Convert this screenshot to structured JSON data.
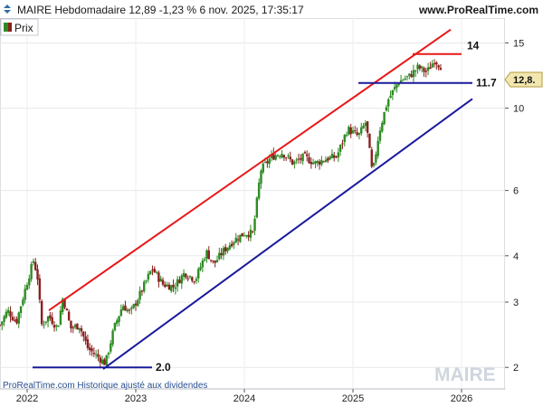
{
  "header": {
    "title": "MAIRE Hebdomadaire 12,89 -1,23 % 6 nov. 2025, 17:35:17",
    "brand": "www.ProRealTime.com"
  },
  "legend": {
    "label": "Prix",
    "icon": "candlestick-icon"
  },
  "watermark": "MAIRE",
  "footer": "ProRealTime.com  Historique ajusté aux dividendes",
  "last_price_badge": "12,8.",
  "colors": {
    "up": "#2e8b24",
    "down": "#8b1f1f",
    "channel_top": "#e81818",
    "channel_bottom": "#1a1a9c",
    "level_red": "#e81818",
    "level_blue": "#1a1a9c",
    "badge_bg": "#f2e7b0"
  },
  "chart_data": {
    "type": "candlestick",
    "scale": "log",
    "x_labels": [
      "2022",
      "2023",
      "2024",
      "2025",
      "2026"
    ],
    "y_ticks": [
      2,
      3,
      4,
      6,
      10,
      15
    ],
    "y_range": [
      1.75,
      17.5
    ],
    "x_range": [
      "2021-10",
      "2026-05"
    ],
    "annotations": [
      {
        "label": "14",
        "value": 14
      },
      {
        "label": "11.7",
        "value": 11.7
      },
      {
        "label": "2.0",
        "value": 2.0
      }
    ],
    "levels": [
      {
        "label": "14",
        "value": 14,
        "from": 2025.55,
        "to": 2026.0,
        "color": "red"
      },
      {
        "label": "11.7",
        "value": 11.7,
        "from": 2025.05,
        "to": 2026.1,
        "color": "blue"
      },
      {
        "label": "2.0",
        "value": 2.0,
        "from": 2022.05,
        "to": 2023.15,
        "color": "blue"
      }
    ],
    "channel": [
      {
        "name": "upper",
        "from": [
          2022.2,
          2.85
        ],
        "to": [
          2025.9,
          16.3
        ]
      },
      {
        "name": "lower",
        "from": [
          2022.7,
          1.98
        ],
        "to": [
          2026.1,
          10.6
        ]
      }
    ],
    "price_path": [
      [
        2021.75,
        2.6
      ],
      [
        2021.82,
        2.85
      ],
      [
        2021.9,
        2.65
      ],
      [
        2022.0,
        3.4
      ],
      [
        2022.06,
        3.9
      ],
      [
        2022.1,
        3.45
      ],
      [
        2022.13,
        2.6
      ],
      [
        2022.2,
        2.75
      ],
      [
        2022.28,
        2.55
      ],
      [
        2022.33,
        3.1
      ],
      [
        2022.4,
        2.55
      ],
      [
        2022.48,
        2.6
      ],
      [
        2022.56,
        2.25
      ],
      [
        2022.64,
        2.15
      ],
      [
        2022.72,
        2.05
      ],
      [
        2022.8,
        2.55
      ],
      [
        2022.88,
        2.95
      ],
      [
        2022.95,
        2.8
      ],
      [
        2023.05,
        3.2
      ],
      [
        2023.15,
        3.7
      ],
      [
        2023.25,
        3.35
      ],
      [
        2023.35,
        3.3
      ],
      [
        2023.45,
        3.6
      ],
      [
        2023.55,
        3.45
      ],
      [
        2023.65,
        4.1
      ],
      [
        2023.72,
        3.8
      ],
      [
        2023.8,
        4.1
      ],
      [
        2023.9,
        4.4
      ],
      [
        2024.0,
        4.6
      ],
      [
        2024.08,
        4.6
      ],
      [
        2024.15,
        6.8
      ],
      [
        2024.25,
        7.4
      ],
      [
        2024.35,
        7.6
      ],
      [
        2024.45,
        7.1
      ],
      [
        2024.55,
        7.4
      ],
      [
        2024.65,
        7.1
      ],
      [
        2024.75,
        7.3
      ],
      [
        2024.85,
        7.4
      ],
      [
        2024.95,
        8.8
      ],
      [
        2025.05,
        8.4
      ],
      [
        2025.12,
        9.2
      ],
      [
        2025.18,
        6.6
      ],
      [
        2025.24,
        8.6
      ],
      [
        2025.32,
        10.5
      ],
      [
        2025.42,
        11.8
      ],
      [
        2025.52,
        12.2
      ],
      [
        2025.6,
        12.9
      ],
      [
        2025.68,
        12.5
      ],
      [
        2025.75,
        13.5
      ],
      [
        2025.82,
        12.89
      ]
    ]
  }
}
